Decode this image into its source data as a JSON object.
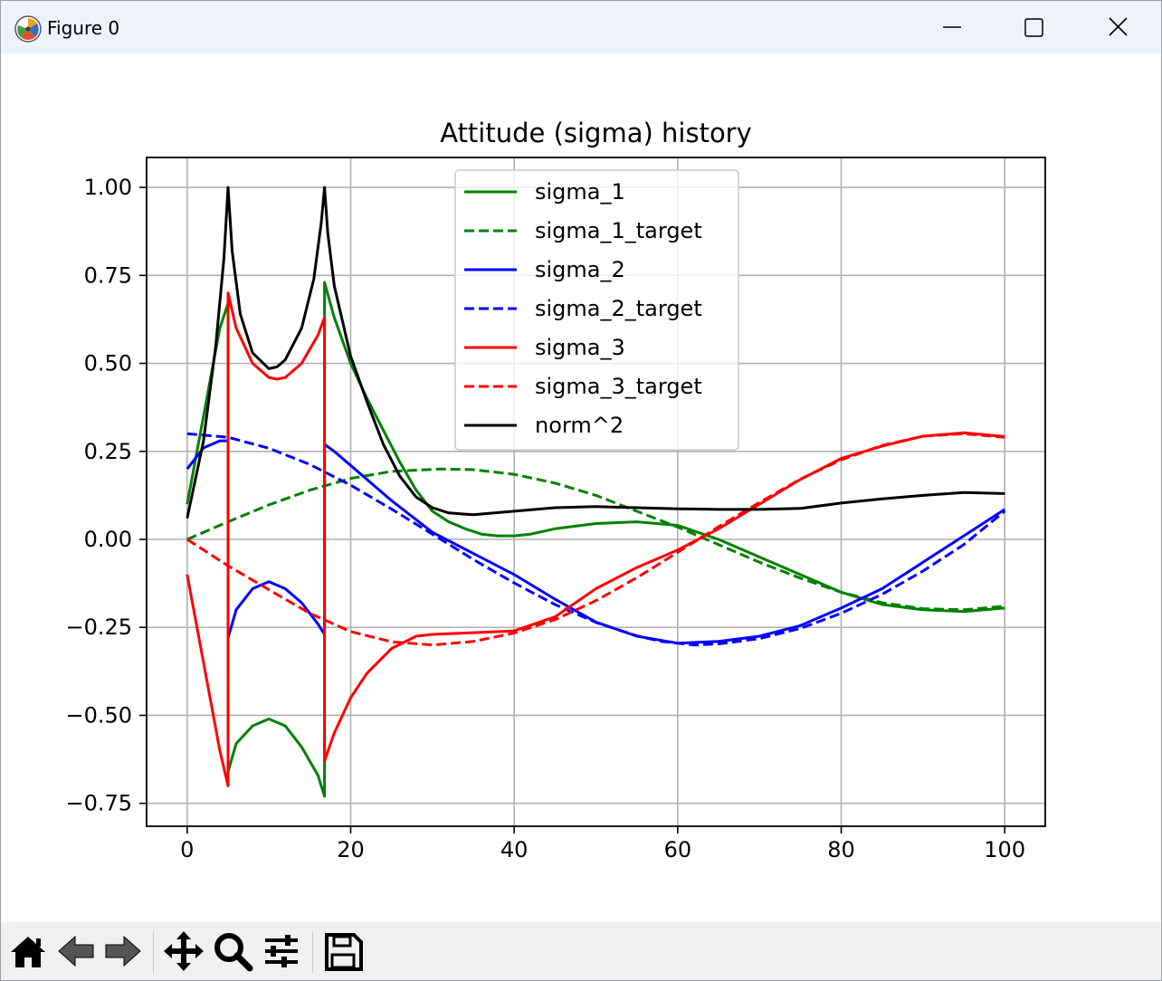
{
  "window": {
    "title": "Figure 0",
    "controls": [
      "minimize-icon",
      "maximize-icon",
      "close-icon"
    ]
  },
  "toolbar": {
    "tools": [
      "home-icon",
      "back-arrow-icon",
      "forward-arrow-icon",
      "pan-move-icon",
      "zoom-magnifier-icon",
      "configure-subplots-icon",
      "save-floppy-icon"
    ]
  },
  "chart_data": {
    "type": "line",
    "title": "Attitude (sigma) history",
    "xlabel": "",
    "ylabel": "",
    "xlim": [
      -4.96,
      104.96
    ],
    "ylim": [
      -0.815,
      1.085
    ],
    "xticks": [
      0,
      20,
      40,
      60,
      80,
      100
    ],
    "xtick_labels": [
      "0",
      "20",
      "40",
      "60",
      "80",
      "100"
    ],
    "yticks": [
      -0.75,
      -0.5,
      -0.25,
      0.0,
      0.25,
      0.5,
      0.75,
      1.0
    ],
    "ytick_labels": [
      "−0.75",
      "−0.50",
      "−0.25",
      "0.00",
      "0.25",
      "0.50",
      "0.75",
      "1.00"
    ],
    "grid": true,
    "legend": "upper center",
    "series": [
      {
        "name": "sigma_1",
        "color": "#008000",
        "style": "solid",
        "x": [
          0,
          2,
          4,
          5,
          5,
          6,
          8,
          10,
          12,
          14,
          16,
          16.8,
          16.8,
          18,
          20,
          22,
          24,
          26,
          28,
          30,
          32,
          34,
          36,
          38,
          40,
          42,
          45,
          50,
          55,
          60,
          65,
          70,
          75,
          80,
          85,
          90,
          95,
          100
        ],
        "y": [
          0.1,
          0.35,
          0.6,
          0.67,
          -0.66,
          -0.58,
          -0.53,
          -0.51,
          -0.53,
          -0.59,
          -0.67,
          -0.73,
          0.73,
          0.63,
          0.5,
          0.4,
          0.31,
          0.22,
          0.14,
          0.08,
          0.05,
          0.03,
          0.015,
          0.01,
          0.01,
          0.015,
          0.03,
          0.045,
          0.05,
          0.04,
          0.0,
          -0.05,
          -0.1,
          -0.15,
          -0.185,
          -0.2,
          -0.205,
          -0.195
        ]
      },
      {
        "name": "sigma_1_target",
        "color": "#008000",
        "style": "dashed",
        "x": [
          0,
          5,
          10,
          15,
          20,
          25,
          31,
          35,
          40,
          45,
          50,
          55,
          60,
          65,
          70,
          75,
          80,
          85,
          90,
          95,
          100
        ],
        "y": [
          0.0,
          0.05,
          0.098,
          0.14,
          0.173,
          0.193,
          0.2,
          0.198,
          0.185,
          0.16,
          0.125,
          0.08,
          0.035,
          -0.015,
          -0.065,
          -0.11,
          -0.15,
          -0.18,
          -0.197,
          -0.2,
          -0.19
        ]
      },
      {
        "name": "sigma_2",
        "color": "#0000ff",
        "style": "solid",
        "x": [
          0,
          2,
          4,
          5,
          5,
          6,
          8,
          10,
          12,
          14,
          16,
          16.8,
          16.8,
          18,
          20,
          25,
          30,
          35,
          40,
          45,
          50,
          55,
          60,
          65,
          70,
          75,
          80,
          85,
          90,
          95,
          100
        ],
        "y": [
          0.2,
          0.26,
          0.28,
          0.28,
          -0.28,
          -0.2,
          -0.14,
          -0.12,
          -0.14,
          -0.18,
          -0.24,
          -0.27,
          0.27,
          0.25,
          0.21,
          0.11,
          0.02,
          -0.04,
          -0.1,
          -0.17,
          -0.235,
          -0.275,
          -0.295,
          -0.29,
          -0.275,
          -0.245,
          -0.195,
          -0.14,
          -0.065,
          0.01,
          0.085
        ]
      },
      {
        "name": "sigma_2_target",
        "color": "#0000ff",
        "style": "dashed",
        "x": [
          0,
          5,
          10,
          15,
          20,
          25,
          30,
          35,
          40,
          45,
          50,
          55,
          58,
          62,
          65,
          70,
          75,
          80,
          85,
          90,
          95,
          100
        ],
        "y": [
          0.3,
          0.29,
          0.259,
          0.213,
          0.154,
          0.086,
          0.015,
          -0.057,
          -0.124,
          -0.185,
          -0.236,
          -0.274,
          -0.29,
          -0.3,
          -0.297,
          -0.282,
          -0.253,
          -0.21,
          -0.156,
          -0.09,
          -0.015,
          0.08
        ]
      },
      {
        "name": "sigma_3",
        "color": "#ff0000",
        "style": "solid",
        "x": [
          0,
          2,
          4,
          5,
          5,
          6,
          8,
          10,
          11,
          12,
          14,
          16,
          16.8,
          16.8,
          18,
          20,
          22,
          25,
          28,
          30,
          35,
          40,
          45,
          50,
          55,
          60,
          65,
          70,
          75,
          80,
          85,
          90,
          95,
          100
        ],
        "y": [
          -0.1,
          -0.35,
          -0.6,
          -0.7,
          0.7,
          0.6,
          0.5,
          0.46,
          0.455,
          0.46,
          0.5,
          0.58,
          0.63,
          -0.63,
          -0.55,
          -0.45,
          -0.38,
          -0.31,
          -0.275,
          -0.27,
          -0.265,
          -0.26,
          -0.22,
          -0.14,
          -0.08,
          -0.03,
          0.03,
          0.1,
          0.17,
          0.23,
          0.265,
          0.293,
          0.303,
          0.292
        ]
      },
      {
        "name": "sigma_3_target",
        "color": "#ff0000",
        "style": "dashed",
        "x": [
          0,
          5,
          10,
          15,
          20,
          25,
          30,
          35,
          40,
          45,
          50,
          55,
          60,
          65,
          70,
          75,
          80,
          85,
          90,
          95,
          100
        ],
        "y": [
          0.0,
          -0.075,
          -0.143,
          -0.21,
          -0.262,
          -0.291,
          -0.3,
          -0.29,
          -0.266,
          -0.228,
          -0.174,
          -0.109,
          -0.037,
          0.036,
          0.105,
          0.171,
          0.226,
          0.267,
          0.293,
          0.3,
          0.29
        ]
      },
      {
        "name": "norm^2",
        "color": "#000000",
        "style": "solid",
        "x": [
          0,
          2,
          3.5,
          4.5,
          5,
          5.5,
          6.5,
          8,
          10,
          11,
          12,
          14,
          15.5,
          16.4,
          16.8,
          17.2,
          18,
          20,
          22,
          24,
          26,
          28,
          30,
          32,
          35,
          40,
          45,
          50,
          55,
          60,
          65,
          70,
          75,
          80,
          85,
          90,
          95,
          100
        ],
        "y": [
          0.06,
          0.28,
          0.55,
          0.8,
          1.0,
          0.82,
          0.64,
          0.53,
          0.485,
          0.49,
          0.51,
          0.6,
          0.74,
          0.9,
          1.0,
          0.87,
          0.72,
          0.52,
          0.39,
          0.27,
          0.18,
          0.12,
          0.09,
          0.075,
          0.07,
          0.08,
          0.09,
          0.093,
          0.09,
          0.087,
          0.085,
          0.085,
          0.088,
          0.103,
          0.115,
          0.125,
          0.133,
          0.13
        ]
      }
    ]
  }
}
